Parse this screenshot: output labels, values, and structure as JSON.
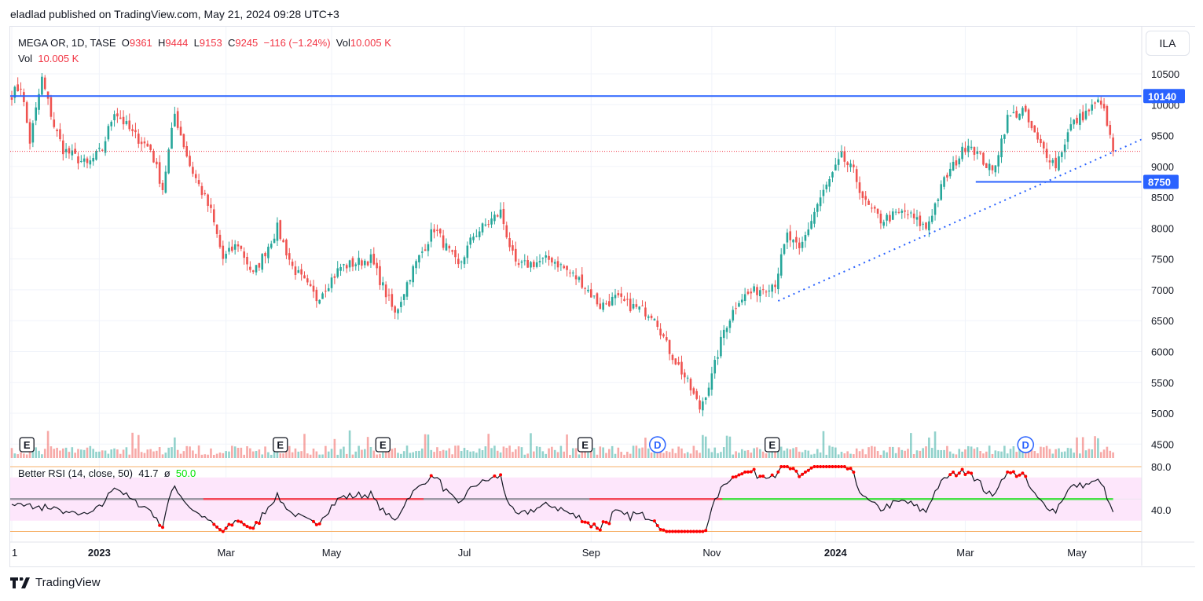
{
  "publish_line": "eladlad published on TradingView.com, May 21, 2024 09:28 UTC+3",
  "legend": {
    "symbol": "MEGA OR, 1D, TASE",
    "o_label": "O",
    "o": "9361",
    "h_label": "H",
    "h": "9444",
    "l_label": "L",
    "l": "9153",
    "c_label": "C",
    "c": "9245",
    "change": "−116 (−1.24%)",
    "vol_label": "Vol",
    "vol": "10.005 K",
    "vol2_label": "Vol",
    "vol2": "10.005 K"
  },
  "currency_button": "ILA",
  "rsi_legend": {
    "title": "Better RSI (14, close, 50)",
    "value": "41.7",
    "sep": "ø",
    "mid": "50.0"
  },
  "footer": {
    "brand": "TradingView"
  },
  "colors": {
    "up": "#26a69a",
    "down": "#ef5350",
    "line": "#2962ff",
    "rsi_band": "#fde6fb",
    "orange": "#f7b26b"
  },
  "chart_data": {
    "type": "candlestick",
    "title": "MEGA OR, 1D, TASE",
    "bars": 366,
    "close_path": [
      [
        0,
        10170
      ],
      [
        3,
        10300
      ],
      [
        6,
        9400
      ],
      [
        10,
        10420
      ],
      [
        14,
        9660
      ],
      [
        17,
        9280
      ],
      [
        25,
        9020
      ],
      [
        30,
        9280
      ],
      [
        34,
        9910
      ],
      [
        40,
        9530
      ],
      [
        46,
        9280
      ],
      [
        50,
        8640
      ],
      [
        54,
        9850
      ],
      [
        59,
        9020
      ],
      [
        66,
        8260
      ],
      [
        70,
        7500
      ],
      [
        75,
        7750
      ],
      [
        80,
        7240
      ],
      [
        88,
        8000
      ],
      [
        93,
        7370
      ],
      [
        101,
        6860
      ],
      [
        109,
        7370
      ],
      [
        119,
        7500
      ],
      [
        127,
        6600
      ],
      [
        132,
        7240
      ],
      [
        140,
        8000
      ],
      [
        148,
        7370
      ],
      [
        153,
        7880
      ],
      [
        162,
        8260
      ],
      [
        167,
        7370
      ],
      [
        179,
        7500
      ],
      [
        189,
        7120
      ],
      [
        195,
        6740
      ],
      [
        200,
        6860
      ],
      [
        205,
        6740
      ],
      [
        213,
        6600
      ],
      [
        217,
        6100
      ],
      [
        223,
        5590
      ],
      [
        228,
        5080
      ],
      [
        232,
        5590
      ],
      [
        236,
        6350
      ],
      [
        241,
        6860
      ],
      [
        247,
        6990
      ],
      [
        253,
        7120
      ],
      [
        257,
        7880
      ],
      [
        261,
        7620
      ],
      [
        267,
        8390
      ],
      [
        275,
        9150
      ],
      [
        279,
        8900
      ],
      [
        283,
        8390
      ],
      [
        288,
        8130
      ],
      [
        296,
        8260
      ],
      [
        303,
        8000
      ],
      [
        309,
        8770
      ],
      [
        317,
        9400
      ],
      [
        325,
        8900
      ],
      [
        330,
        9780
      ],
      [
        335,
        9910
      ],
      [
        340,
        9400
      ],
      [
        346,
        9020
      ],
      [
        351,
        9660
      ],
      [
        357,
        9910
      ],
      [
        361,
        10070
      ],
      [
        363,
        9660
      ],
      [
        365,
        9245
      ]
    ],
    "y_ticks": [
      "10500",
      "10000",
      "9500",
      "9000",
      "8500",
      "8000",
      "7500",
      "7000",
      "6500",
      "6000",
      "5500",
      "5000",
      "4500"
    ],
    "y_range": [
      4350,
      10700
    ],
    "x_ticks": [
      {
        "label": "1",
        "bar": 0,
        "bold": false
      },
      {
        "label": "2023",
        "bar": 29,
        "bold": true
      },
      {
        "label": "Mar",
        "bar": 71,
        "bold": false
      },
      {
        "label": "May",
        "bar": 106,
        "bold": false
      },
      {
        "label": "Jul",
        "bar": 150,
        "bold": false
      },
      {
        "label": "Sep",
        "bar": 192,
        "bold": false
      },
      {
        "label": "Nov",
        "bar": 232,
        "bold": false
      },
      {
        "label": "2024",
        "bar": 273,
        "bold": true
      },
      {
        "label": "Mar",
        "bar": 316,
        "bold": false
      },
      {
        "label": "May",
        "bar": 353,
        "bold": false
      }
    ],
    "horizontal_levels": [
      {
        "price": 10140,
        "label": "10140",
        "from_bar": 0
      },
      {
        "price": 8750,
        "label": "8750",
        "from_bar": 320
      }
    ],
    "trendline": {
      "from": [
        254,
        6821
      ],
      "to": [
        375,
        9450
      ]
    },
    "last_close": 9245,
    "events": [
      {
        "type": "E",
        "bar": 5
      },
      {
        "type": "E",
        "bar": 89
      },
      {
        "type": "E",
        "bar": 123
      },
      {
        "type": "E",
        "bar": 190
      },
      {
        "type": "D",
        "bar": 214
      },
      {
        "type": "E",
        "bar": 252
      },
      {
        "type": "D",
        "bar": 336
      }
    ],
    "rsi": {
      "length": 14,
      "ticks": [
        "80.0",
        "40.0"
      ],
      "range": [
        20,
        80
      ],
      "band": [
        30,
        70
      ],
      "mid": 50,
      "mid_segments": [
        {
          "from": 0,
          "to": 64,
          "color": "#9e9aa6"
        },
        {
          "from": 64,
          "to": 137,
          "color": "#f44a5a"
        },
        {
          "from": 137,
          "to": 192,
          "color": "#9e9aa6"
        },
        {
          "from": 192,
          "to": 236,
          "color": "#f44a5a"
        },
        {
          "from": 236,
          "to": 365,
          "color": "#4be04b"
        }
      ]
    }
  }
}
